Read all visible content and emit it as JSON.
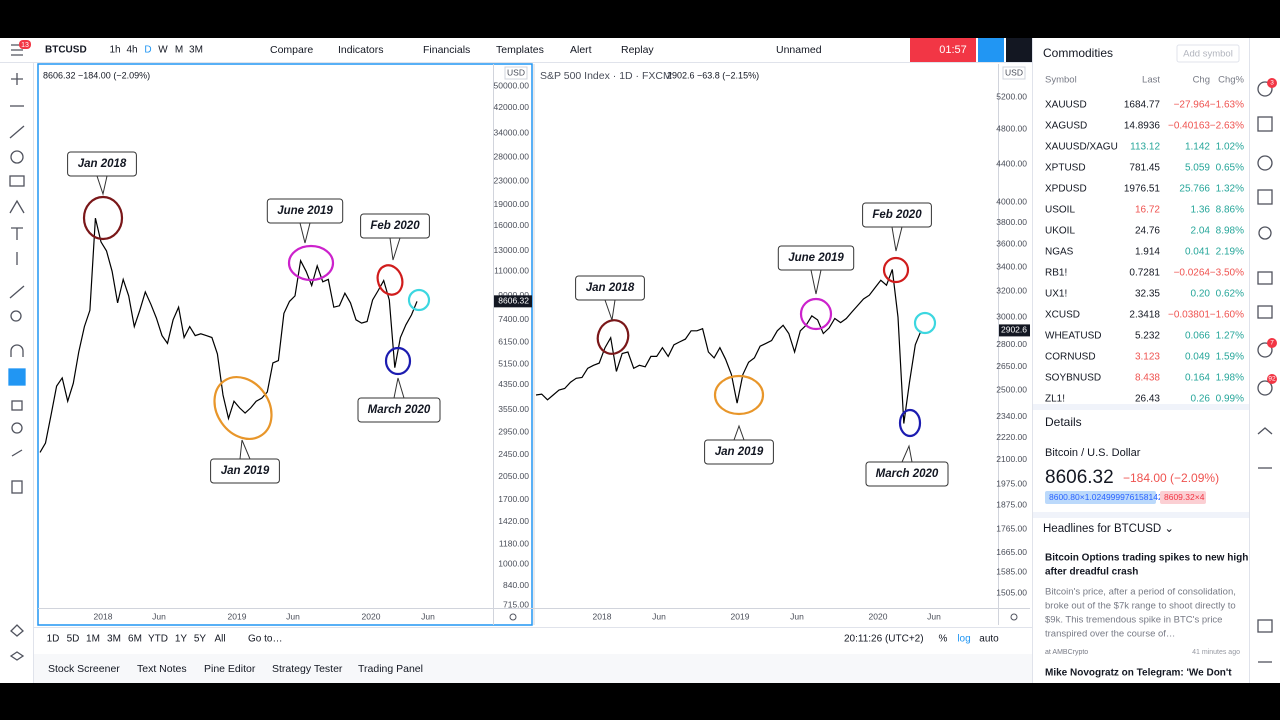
{
  "toolbar": {
    "symbol": "BTCUSD",
    "menu_badge": "13",
    "intervals": [
      "1h",
      "4h",
      "D",
      "W",
      "M",
      "3M"
    ],
    "buttons": [
      "Compare",
      "Indicators",
      "Financials",
      "Templates",
      "Alert",
      "Replay"
    ],
    "layout_name": "Unnamed",
    "timer": "01:57"
  },
  "charts": [
    {
      "type": "line",
      "legend": "8606.32  −184.00 (−2.09%)",
      "currency": "USD",
      "log_scale": true,
      "color": "#000000",
      "ylim": [
        700,
        60000
      ],
      "yticks": [
        {
          "value": 50000,
          "label": "50000.00"
        },
        {
          "value": 42000,
          "label": "42000.00"
        },
        {
          "value": 34000,
          "label": "34000.00"
        },
        {
          "value": 28000,
          "label": "28000.00"
        },
        {
          "value": 23000,
          "label": "23000.00"
        },
        {
          "value": 19000,
          "label": "19000.00"
        },
        {
          "value": 16000,
          "label": "16000.00"
        },
        {
          "value": 13000,
          "label": "13000.00"
        },
        {
          "value": 11000,
          "label": "11000.00"
        },
        {
          "value": 9000,
          "label": "9000.00"
        },
        {
          "value": 7400,
          "label": "7400.00"
        },
        {
          "value": 6150,
          "label": "6150.00"
        },
        {
          "value": 5150,
          "label": "5150.00"
        },
        {
          "value": 4350,
          "label": "4350.00"
        },
        {
          "value": 3550,
          "label": "3550.00"
        },
        {
          "value": 2950,
          "label": "2950.00"
        },
        {
          "value": 2450,
          "label": "2450.00"
        },
        {
          "value": 2050,
          "label": "2050.00"
        },
        {
          "value": 1700,
          "label": "1700.00"
        },
        {
          "value": 1420,
          "label": "1420.00"
        },
        {
          "value": 1180,
          "label": "1180.00"
        },
        {
          "value": 1000,
          "label": "1000.00"
        },
        {
          "value": 840,
          "label": "840.00"
        },
        {
          "value": 715,
          "label": "715.00"
        }
      ],
      "x_labels": [
        "2018",
        "Jun",
        "2019",
        "Jun",
        "2020",
        "Jun"
      ],
      "values": [
        2500,
        2700,
        3400,
        4300,
        4600,
        3800,
        4400,
        5700,
        7000,
        8000,
        17000,
        14000,
        13000,
        11000,
        8500,
        10300,
        9000,
        7000,
        8000,
        9300,
        8400,
        7500,
        6500,
        6100,
        7400,
        8200,
        6400,
        7000,
        6500,
        6600,
        6500,
        6400,
        5600,
        4000,
        3300,
        3800,
        3600,
        3450,
        3600,
        3800,
        3900,
        4100,
        5200,
        5300,
        7800,
        8600,
        9000,
        12000,
        11000,
        9800,
        11500,
        10100,
        10300,
        8200,
        8300,
        9200,
        8500,
        7400,
        7200,
        7300,
        8700,
        9400,
        10200,
        8700,
        5000,
        6400,
        7100,
        7700,
        8600
      ],
      "last_price": {
        "value": 8606.32,
        "label": "8606.32"
      },
      "annotations": [
        {
          "label": "Jan 2018",
          "color": "#7a1719"
        },
        {
          "label": "June 2019",
          "color": "#cc22cc"
        },
        {
          "label": "Feb 2020",
          "color": "#d01c1c"
        },
        {
          "label": "Jan 2019",
          "color": "#e8962a"
        },
        {
          "label": "March 2020",
          "color": "#1c1cb0"
        }
      ]
    },
    {
      "type": "line",
      "title": "S&P 500 Index · 1D · FXCM",
      "legend": "2902.6  −63.8 (−2.15%)",
      "currency": "USD",
      "log_scale": true,
      "color": "#000000",
      "ylim": [
        1450,
        5650
      ],
      "yticks": [
        {
          "value": 5200,
          "label": "5200.00"
        },
        {
          "value": 4800,
          "label": "4800.00"
        },
        {
          "value": 4400,
          "label": "4400.00"
        },
        {
          "value": 4000,
          "label": "4000.00"
        },
        {
          "value": 3800,
          "label": "3800.00"
        },
        {
          "value": 3600,
          "label": "3600.00"
        },
        {
          "value": 3400,
          "label": "3400.00"
        },
        {
          "value": 3200,
          "label": "3200.00"
        },
        {
          "value": 3000,
          "label": "3000.00"
        },
        {
          "value": 2800,
          "label": "2800.00"
        },
        {
          "value": 2650,
          "label": "2650.00"
        },
        {
          "value": 2500,
          "label": "2500.00"
        },
        {
          "value": 2340,
          "label": "2340.00"
        },
        {
          "value": 2220,
          "label": "2220.00"
        },
        {
          "value": 2100,
          "label": "2100.00"
        },
        {
          "value": 1975,
          "label": "1975.00"
        },
        {
          "value": 1875,
          "label": "1875.00"
        },
        {
          "value": 1765,
          "label": "1765.00"
        },
        {
          "value": 1665,
          "label": "1665.00"
        },
        {
          "value": 1585,
          "label": "1585.00"
        },
        {
          "value": 1505,
          "label": "1505.00"
        }
      ],
      "x_labels": [
        "2018",
        "Jun",
        "2019",
        "Jun",
        "2020",
        "Jun"
      ],
      "values": [
        2470,
        2475,
        2440,
        2470,
        2500,
        2510,
        2550,
        2575,
        2580,
        2640,
        2660,
        2675,
        2780,
        2850,
        2620,
        2740,
        2750,
        2640,
        2660,
        2650,
        2720,
        2720,
        2780,
        2720,
        2800,
        2820,
        2840,
        2900,
        2900,
        2915,
        2750,
        2710,
        2780,
        2700,
        2600,
        2420,
        2600,
        2680,
        2710,
        2790,
        2810,
        2830,
        2900,
        2940,
        2880,
        2750,
        2900,
        2940,
        3010,
        2980,
        2880,
        2920,
        2990,
        2960,
        2990,
        3040,
        3090,
        3140,
        3170,
        3230,
        3290,
        3250,
        3380,
        3000,
        2300,
        2550,
        2800,
        2900
      ],
      "last_price": {
        "value": 2902.6,
        "label": "2902.6"
      },
      "annotations": [
        {
          "label": "Jan 2018",
          "color": "#7a1719"
        },
        {
          "label": "June 2019",
          "color": "#cc22cc"
        },
        {
          "label": "Feb 2020",
          "color": "#d01c1c"
        },
        {
          "label": "Jan 2019",
          "color": "#e8962a"
        },
        {
          "label": "March 2020",
          "color": "#1c1cb0"
        }
      ]
    }
  ],
  "bottom_bar": {
    "ranges": [
      "1D",
      "5D",
      "1M",
      "3M",
      "6M",
      "YTD",
      "1Y",
      "5Y",
      "All"
    ],
    "goto": "Go to…",
    "clock": "20:11:26 (UTC+2)",
    "percent": "%",
    "log": "log",
    "auto": "auto"
  },
  "tabs": [
    "Stock Screener",
    "Text Notes",
    "Pine Editor",
    "Strategy Tester",
    "Trading Panel"
  ],
  "watchlist": {
    "title": "Commodities",
    "add": "Add symbol",
    "columns": [
      "Symbol",
      "Last",
      "Chg",
      "Chg%"
    ],
    "rows": [
      {
        "symbol": "XAUUSD",
        "last": "1684.77",
        "chg": "−27.964",
        "chg_pct": "−1.63%"
      },
      {
        "symbol": "XAGUSD",
        "last": "14.8936",
        "chg": "−0.40163",
        "chg_pct": "−2.63%"
      },
      {
        "symbol": "XAUUSD/XAGU",
        "last": "113.12",
        "chg": "1.142",
        "chg_pct": "1.02%",
        "last_color": "#26a69a"
      },
      {
        "symbol": "XPTUSD",
        "last": "781.45",
        "chg": "5.059",
        "chg_pct": "0.65%"
      },
      {
        "symbol": "XPDUSD",
        "last": "1976.51",
        "chg": "25.766",
        "chg_pct": "1.32%"
      },
      {
        "symbol": "USOIL",
        "last": "16.72",
        "chg": "1.36",
        "chg_pct": "8.86%",
        "last_color": "#ef5350"
      },
      {
        "symbol": "UKOIL",
        "last": "24.76",
        "chg": "2.04",
        "chg_pct": "8.98%"
      },
      {
        "symbol": "NGAS",
        "last": "1.914",
        "chg": "0.041",
        "chg_pct": "2.19%"
      },
      {
        "symbol": "RB1!",
        "last": "0.7281",
        "chg": "−0.0264",
        "chg_pct": "−3.50%"
      },
      {
        "symbol": "UX1!",
        "last": "32.35",
        "chg": "0.20",
        "chg_pct": "0.62%"
      },
      {
        "symbol": "XCUSD",
        "last": "2.3418",
        "chg": "−0.03801",
        "chg_pct": "−1.60%"
      },
      {
        "symbol": "WHEATUSD",
        "last": "5.232",
        "chg": "0.066",
        "chg_pct": "1.27%"
      },
      {
        "symbol": "CORNUSD",
        "last": "3.123",
        "chg": "0.049",
        "chg_pct": "1.59%",
        "last_color": "#ef5350"
      },
      {
        "symbol": "SOYBNUSD",
        "last": "8.438",
        "chg": "0.164",
        "chg_pct": "1.98%",
        "last_color": "#ef5350"
      },
      {
        "symbol": "ZL1!",
        "last": "26.43",
        "chg": "0.26",
        "chg_pct": "0.99%"
      }
    ]
  },
  "details": {
    "title": "Details",
    "name": "Bitcoin / U.S. Dollar",
    "price": "8606.32",
    "change": "−184.00 (−2.09%)",
    "bid": "8600.80×1.024999976158142",
    "ask": "8609.32×4"
  },
  "headlines": {
    "title": "Headlines for BTCUSD ⌄",
    "article_title": [
      "Bitcoin Options trading spikes to new high",
      "after dreadful crash"
    ],
    "article_body": [
      "Bitcoin's price, after a period of consolidation,",
      "broke out of the $7k range to shoot directly to",
      "$9k. This tremendous spike in BTC's price",
      "transpired over the course of…"
    ],
    "source": "at AMBCrypto",
    "time": "41 minutes ago",
    "next_title": "Mike Novogratz on Telegram: 'We Don't"
  },
  "sidebar_badges": [
    "3",
    "7",
    "92"
  ]
}
